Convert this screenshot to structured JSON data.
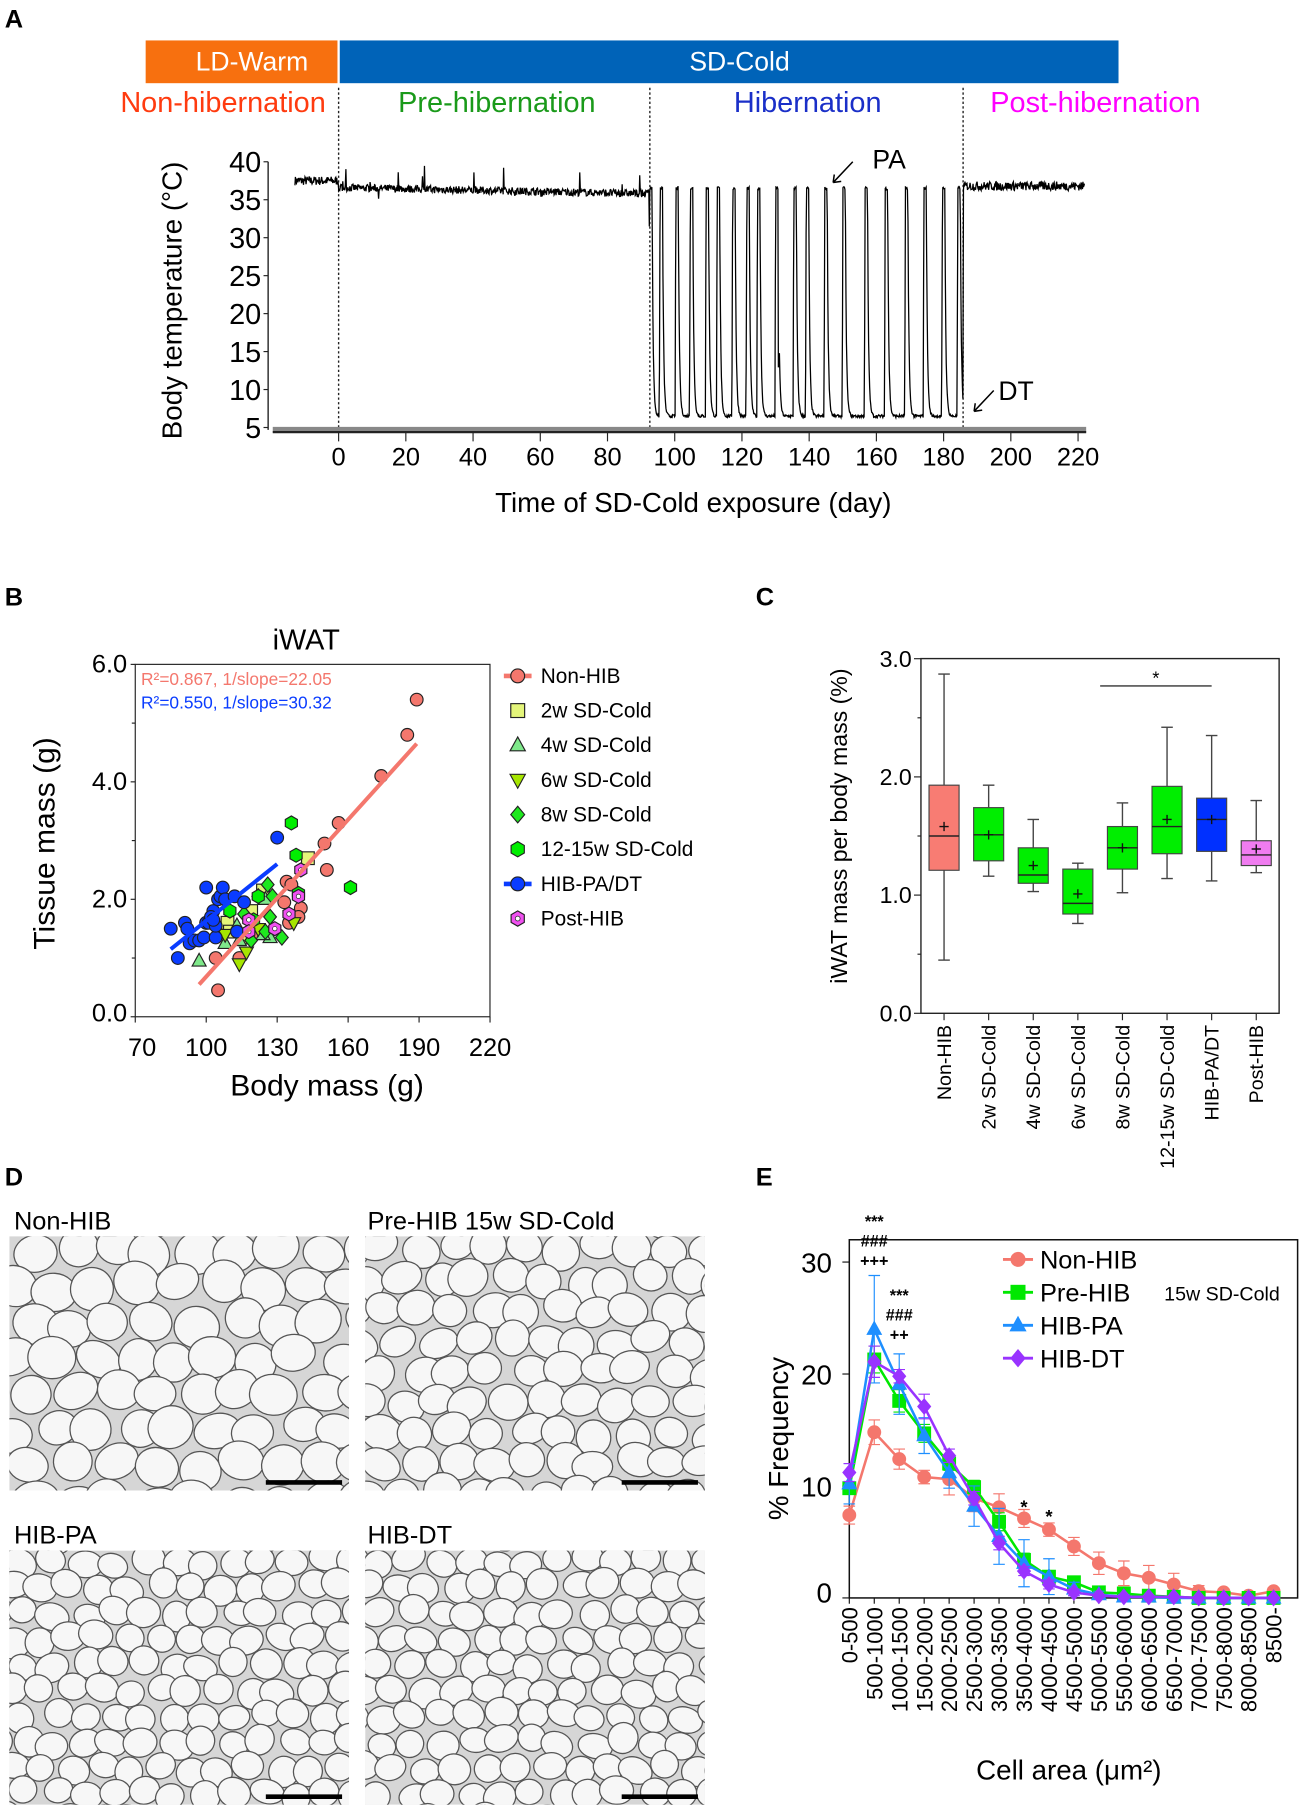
{
  "panel_letters": {
    "a": "A",
    "b": "B",
    "c": "C",
    "d": "D",
    "e": "E"
  },
  "colors": {
    "ld_warm": "#f7700f",
    "sd_cold": "#0063b8",
    "non_hib": "#f4776d",
    "pre_hib": "#00e800",
    "hib_pa": "#1e8fff",
    "hib_dt": "#9933ff",
    "hib_box": "#0030ff",
    "post_hib": "#f07cf0",
    "phase_non": "#ff3b0f",
    "phase_pre": "#1a9a1a",
    "phase_hib": "#1a2fc8",
    "phase_post": "#ff00ff"
  },
  "chart_data": [
    {
      "id": "A",
      "type": "line",
      "conditions": [
        "LD-Warm",
        "SD-Cold"
      ],
      "phases": [
        "Non-hibernation",
        "Pre-hibernation",
        "Hibernation",
        "Post-hibernation"
      ],
      "phase_boundaries_day": [
        0,
        92.6,
        185.8
      ],
      "xlabel": "Time of SD-Cold exposure (day)",
      "ylabel": "Body temperature (°C)",
      "xticks": [
        0,
        20,
        40,
        60,
        80,
        100,
        120,
        140,
        160,
        180,
        200,
        220
      ],
      "yticks": [
        5,
        10,
        15,
        20,
        25,
        30,
        35,
        40
      ],
      "xlim": [
        -27,
        220
      ],
      "ylim": [
        5,
        40
      ],
      "baseline_temps": {
        "non_hibernation": 37.5,
        "pre_hibernation_start": 36.6,
        "pre_hibernation_end": 35.8,
        "torpor": 6.5,
        "arousal": 36.5,
        "post_hibernation": 36.8
      },
      "arousal_days": [
        92.9,
        96,
        100.7,
        105,
        109.7,
        113,
        117.6,
        121.8,
        125,
        130.4,
        135.8,
        139.5,
        145,
        150.4,
        157,
        163,
        169,
        174.5,
        180,
        184.6
      ],
      "partial_arousal": {
        "day": 131,
        "temp": 13
      },
      "annotations": [
        "PA",
        "DT"
      ]
    },
    {
      "id": "B",
      "type": "scatter",
      "title": "iWAT",
      "xlabel": "Body mass (g)",
      "ylabel": "Tissue mass (g)",
      "xlim": [
        70,
        220
      ],
      "ylim": [
        0,
        6
      ],
      "xticks": [
        "70",
        "100",
        "130",
        "160",
        "190",
        "220"
      ],
      "yticks": [
        "0.0",
        "2.0",
        "4.0",
        "6.0"
      ],
      "regressions": [
        {
          "series": "Non-HIB",
          "label": "R²=0.867, 1/slope=22.05",
          "x": [
            97,
            189
          ],
          "y": [
            0.55,
            4.65
          ]
        },
        {
          "series": "HIB-PA/DT",
          "label": "R²=0.550, 1/slope=30.32",
          "x": [
            85,
            130
          ],
          "y": [
            1.15,
            2.6
          ]
        }
      ],
      "series": [
        {
          "name": "Non-HIB",
          "marker": "circle",
          "color": "#f4776d",
          "points": [
            [
              189,
              5.4
            ],
            [
              185,
              4.8
            ],
            [
              174,
              4.1
            ],
            [
              156,
              3.3
            ],
            [
              150,
              2.95
            ],
            [
              151,
              2.5
            ],
            [
              134,
              2.3
            ],
            [
              136,
              2.25
            ],
            [
              133,
              1.95
            ],
            [
              140,
              1.85
            ],
            [
              139,
              1.7
            ],
            [
              135,
              1.6
            ],
            [
              105,
              0.45
            ],
            [
              104,
              1.0
            ],
            [
              114,
              1.0
            ],
            [
              120,
              1.4
            ],
            [
              100,
              1.6
            ]
          ]
        },
        {
          "name": "2w SD-Cold",
          "marker": "square",
          "color": "#e4f57a",
          "points": [
            [
              109,
              1.6
            ],
            [
              119,
              1.8
            ],
            [
              124,
              2.15
            ],
            [
              143,
              2.7
            ],
            [
              117,
              1.35
            ],
            [
              110,
              1.45
            ]
          ]
        },
        {
          "name": "4w SD-Cold",
          "marker": "triangle",
          "color": "#7ee88a",
          "points": [
            [
              97,
              0.95
            ],
            [
              108,
              1.25
            ],
            [
              114,
              1.3
            ],
            [
              125,
              2.0
            ],
            [
              127,
              1.35
            ],
            [
              124,
              1.4
            ],
            [
              113,
              1.55
            ]
          ]
        },
        {
          "name": "6w SD-Cold",
          "marker": "triangle-down",
          "color": "#a6e600",
          "points": [
            [
              108,
              1.4
            ],
            [
              114,
              0.9
            ],
            [
              117,
              1.1
            ],
            [
              137,
              1.6
            ],
            [
              122,
              1.5
            ],
            [
              118,
              1.65
            ]
          ]
        },
        {
          "name": "8w SD-Cold",
          "marker": "diamond",
          "color": "#1ee81e",
          "points": [
            [
              126,
              2.25
            ],
            [
              128,
              2.05
            ],
            [
              127,
              1.7
            ],
            [
              132,
              1.35
            ],
            [
              125,
              1.45
            ],
            [
              119,
              1.3
            ],
            [
              116,
              1.75
            ],
            [
              122,
              2.05
            ]
          ]
        },
        {
          "name": "12-15w SD-Cold",
          "marker": "hexagon",
          "color": "#00ee00",
          "points": [
            [
              136,
              3.3
            ],
            [
              138,
              2.75
            ],
            [
              161,
              2.2
            ],
            [
              110,
              1.8
            ],
            [
              120,
              1.65
            ],
            [
              122,
              2.05
            ],
            [
              139,
              2.1
            ]
          ]
        },
        {
          "name": "HIB-PA/DT",
          "marker": "circle",
          "color": "#0a3cff",
          "points": [
            [
              85,
              1.5
            ],
            [
              88,
              1.0
            ],
            [
              91,
              1.6
            ],
            [
              92,
              1.5
            ],
            [
              93,
              1.25
            ],
            [
              95,
              1.3
            ],
            [
              97,
              1.3
            ],
            [
              99,
              1.35
            ],
            [
              100,
              1.6
            ],
            [
              101,
              1.6
            ],
            [
              100,
              2.2
            ],
            [
              103,
              1.8
            ],
            [
              104,
              1.35
            ],
            [
              104,
              1.55
            ],
            [
              105,
              2.0
            ],
            [
              106,
              2.05
            ],
            [
              107,
              2.2
            ],
            [
              108,
              2.0
            ],
            [
              112,
              2.05
            ],
            [
              113,
              1.45
            ],
            [
              116,
              1.95
            ],
            [
              130,
              3.05
            ],
            [
              102,
              1.7
            ],
            [
              103,
              1.65
            ]
          ]
        },
        {
          "name": "Post-HIB",
          "marker": "hexagon-dot",
          "color": "#f050f0",
          "points": [
            [
              118,
              1.65
            ],
            [
              139,
              2.05
            ],
            [
              135,
              1.75
            ],
            [
              129,
              1.5
            ],
            [
              140,
              2.5
            ],
            [
              118,
              1.45
            ]
          ]
        }
      ]
    },
    {
      "id": "C",
      "type": "box",
      "ylabel": "iWAT mass per body mass (%)",
      "ylim": [
        0,
        3
      ],
      "yticks": [
        "0.0",
        "1.0",
        "2.0",
        "3.0"
      ],
      "categories": [
        "Non-HIB",
        "2w SD-Cold",
        "4w SD-Cold",
        "6w SD-Cold",
        "8w SD-Cold",
        "12-15w SD-Cold",
        "HIB-PA/DT",
        "Post-HIB"
      ],
      "box_colors": [
        "#f87c73",
        "#00ee00",
        "#00ee00",
        "#00ee00",
        "#00ee00",
        "#00ee00",
        "#0030ff",
        "#f07cf0"
      ],
      "min": [
        0.45,
        1.16,
        1.03,
        0.76,
        1.02,
        1.14,
        1.12,
        1.19
      ],
      "q1": [
        1.21,
        1.29,
        1.1,
        0.84,
        1.22,
        1.35,
        1.37,
        1.25
      ],
      "median": [
        1.5,
        1.51,
        1.17,
        0.93,
        1.4,
        1.58,
        1.64,
        1.34
      ],
      "mean": [
        1.58,
        1.51,
        1.25,
        1.01,
        1.4,
        1.64,
        1.64,
        1.39
      ],
      "q3": [
        1.93,
        1.74,
        1.4,
        1.22,
        1.58,
        1.92,
        1.82,
        1.46
      ],
      "max": [
        2.87,
        1.93,
        1.64,
        1.27,
        1.78,
        2.42,
        2.35,
        1.8
      ],
      "significance": {
        "from_category": 3.5,
        "to_category": 6,
        "y": 2.77,
        "label": "*"
      }
    },
    {
      "id": "E",
      "type": "line",
      "xlabel": "Cell area (μm²)",
      "ylabel": "% Frequency",
      "ylim": [
        0,
        32
      ],
      "yticks": [
        "0",
        "10",
        "20",
        "30"
      ],
      "categories": [
        "0-500",
        "500-1000",
        "1000-1500",
        "1500-2000",
        "2000-2500",
        "2500-3000",
        "3000-3500",
        "3500-4000",
        "4000-4500",
        "4500-5000",
        "5000-5500",
        "5500-6000",
        "6000-6500",
        "6500-7000",
        "7000-7500",
        "7500-8000",
        "8000-8500",
        "8500-"
      ],
      "series": [
        {
          "name": "Non-HIB",
          "sub": "",
          "marker": "circle",
          "color": "#f4776d",
          "values": [
            7.4,
            14.8,
            12.4,
            10.8,
            10.6,
            8.9,
            8.1,
            7.1,
            6.1,
            4.6,
            3.1,
            2.2,
            1.8,
            1.2,
            0.6,
            0.5,
            0.2,
            0.6
          ],
          "err": [
            0.8,
            1.1,
            0.9,
            0.6,
            1.4,
            1.2,
            1.2,
            0.8,
            0.6,
            0.8,
            1.0,
            1.1,
            1.1,
            1.0,
            0.5,
            0.3,
            0.2,
            0.3
          ]
        },
        {
          "name": "Pre-HIB",
          "sub": "15w SD-Cold",
          "marker": "square",
          "color": "#00e800",
          "values": [
            9.8,
            21.3,
            17.6,
            14.7,
            12.0,
            9.9,
            6.8,
            3.4,
            1.9,
            1.4,
            0.5,
            0.4,
            0.2,
            0.1,
            0,
            0,
            0,
            0
          ],
          "err": [
            0.5,
            1.2,
            1.0,
            0.8,
            0.6,
            0.6,
            0.8,
            0.6,
            0.5,
            0.4,
            0.2,
            0.2,
            0.1,
            0.1,
            0,
            0,
            0,
            0
          ]
        },
        {
          "name": "HIB-PA",
          "sub": "",
          "marker": "triangle",
          "color": "#1e8fff",
          "values": [
            10.2,
            24.0,
            19.1,
            14.5,
            11.2,
            8.2,
            5.5,
            3.1,
            1.9,
            0.8,
            0.3,
            0.1,
            0.1,
            0,
            0,
            0,
            0,
            0
          ],
          "err": [
            1.8,
            4.8,
            2.7,
            1.6,
            1.4,
            1.8,
            2.5,
            2.1,
            1.6,
            0.6,
            0.3,
            0.2,
            0.1,
            0,
            0,
            0,
            0,
            0
          ]
        },
        {
          "name": "HIB-DT",
          "sub": "",
          "marker": "diamond",
          "color": "#9933ff",
          "values": [
            11.2,
            21.1,
            19.8,
            17.1,
            12.7,
            8.9,
            4.9,
            2.4,
            1.2,
            0.5,
            0.2,
            0.1,
            0.1,
            0.1,
            0,
            0,
            0,
            0
          ],
          "err": [
            0.8,
            1.4,
            0.6,
            1.1,
            0.6,
            0.6,
            0.6,
            0.4,
            0.4,
            0.3,
            0.1,
            0.1,
            0.1,
            0,
            0,
            0,
            0,
            0
          ]
        }
      ],
      "annotations": [
        {
          "category": 1,
          "lines": [
            "***",
            "###",
            "+++"
          ]
        },
        {
          "category": 2,
          "lines": [
            "***",
            "###",
            "++"
          ]
        },
        {
          "category": 7,
          "lines": [
            "*"
          ]
        },
        {
          "category": 8,
          "lines": [
            "*"
          ]
        }
      ]
    }
  ],
  "panel_d": {
    "images": [
      {
        "label": "Non-HIB",
        "cell_size": "large"
      },
      {
        "label": "Pre-HIB 15w SD-Cold",
        "cell_size": "medium"
      },
      {
        "label": "HIB-PA",
        "cell_size": "small"
      },
      {
        "label": "HIB-DT",
        "cell_size": "small"
      }
    ]
  }
}
